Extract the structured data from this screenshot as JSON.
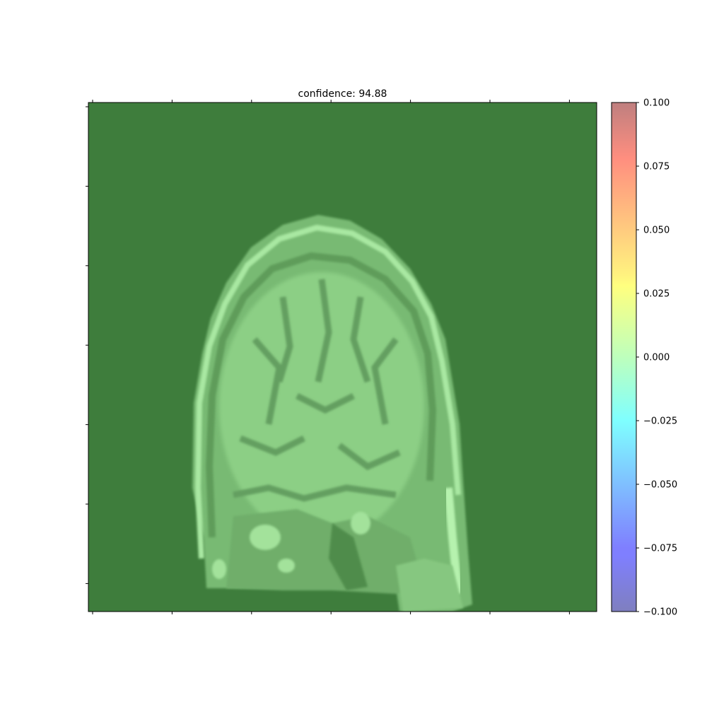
{
  "chart_data": {
    "type": "heatmap",
    "title": "confidence: 94.88",
    "background_image": "brain-mri-sagittal-slice",
    "overlay_value": 0.0,
    "overlay_color": "#3e7d3c",
    "colormap": "jet",
    "colormap_alpha": 0.5,
    "colorbar": {
      "range": [
        -0.1,
        0.1
      ],
      "tick_values": [
        0.1,
        0.075,
        0.05,
        0.025,
        0.0,
        -0.025,
        -0.05,
        -0.075,
        -0.1
      ],
      "tick_labels": [
        "0.100",
        "0.075",
        "0.050",
        "0.025",
        "0.000",
        "−0.025",
        "−0.050",
        "−0.075",
        "−0.100"
      ]
    },
    "x_ticks_count": 7,
    "y_ticks_count": 7,
    "x_tick_labels_shown": false,
    "y_tick_labels_shown": false
  }
}
